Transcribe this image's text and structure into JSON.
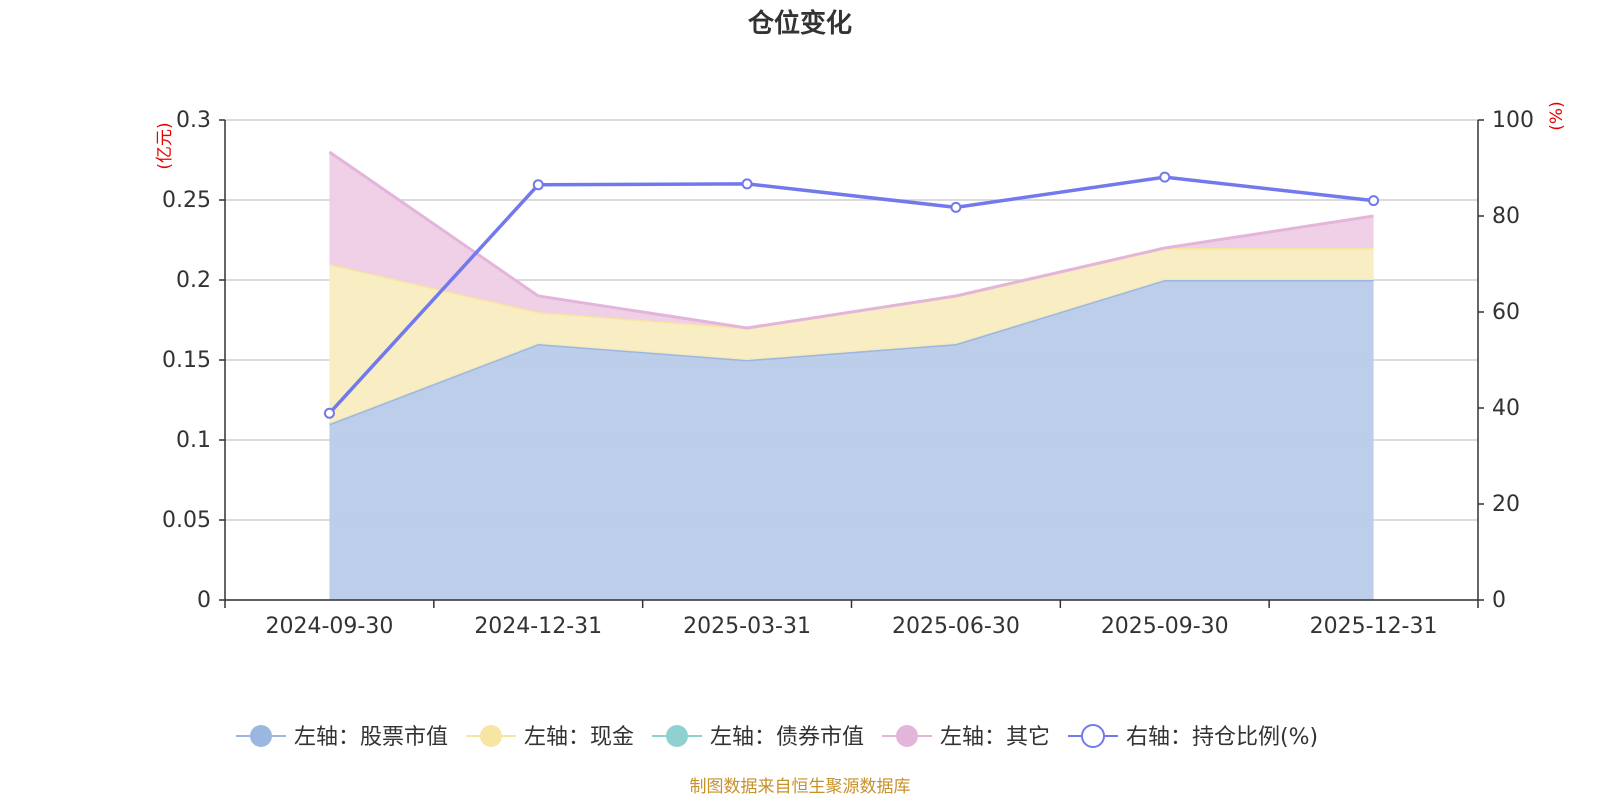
{
  "chart_data": {
    "type": "area",
    "title": "仓位变化",
    "categories": [
      "2024-09-30",
      "2024-12-31",
      "2025-03-31",
      "2025-06-30",
      "2025-09-30",
      "2025-12-31"
    ],
    "left_axis": {
      "unit": "(亿元)",
      "ylim": [
        0,
        0.3
      ],
      "ticks": [
        "0",
        "0.05",
        "0.1",
        "0.15",
        "0.2",
        "0.25",
        "0.3"
      ]
    },
    "right_axis": {
      "unit": "(%)",
      "ylim": [
        0,
        100
      ],
      "ticks": [
        "0",
        "20",
        "40",
        "60",
        "80",
        "100"
      ]
    },
    "series": [
      {
        "name": "左轴：股票市值",
        "axis": "left",
        "stack": true,
        "color": "#9bb7e0",
        "fill": "#b8cbe9",
        "values": [
          0.11,
          0.16,
          0.15,
          0.16,
          0.2,
          0.2
        ]
      },
      {
        "name": "左轴：现金",
        "axis": "left",
        "stack": true,
        "color": "#f7e5a3",
        "fill": "#f9ecc0",
        "values": [
          0.1,
          0.02,
          0.02,
          0.03,
          0.02,
          0.02
        ]
      },
      {
        "name": "左轴：债券市值",
        "axis": "left",
        "stack": true,
        "color": "#8fd0d0",
        "fill": "#bfe5e5",
        "values": [
          0,
          0,
          0,
          0,
          0,
          0
        ]
      },
      {
        "name": "左轴：其它",
        "axis": "left",
        "stack": true,
        "color": "#e4b5da",
        "fill": "#efcde6",
        "values": [
          0.07,
          0.01,
          0.0,
          0.0,
          0.0,
          0.02
        ]
      },
      {
        "name": "右轴：持仓比例(%)",
        "axis": "right",
        "type": "line",
        "color": "#7279ec",
        "values": [
          38.9,
          86.5,
          86.7,
          81.8,
          88.1,
          83.2
        ]
      }
    ]
  },
  "footer": {
    "source": "制图数据来自恒生聚源数据库"
  }
}
